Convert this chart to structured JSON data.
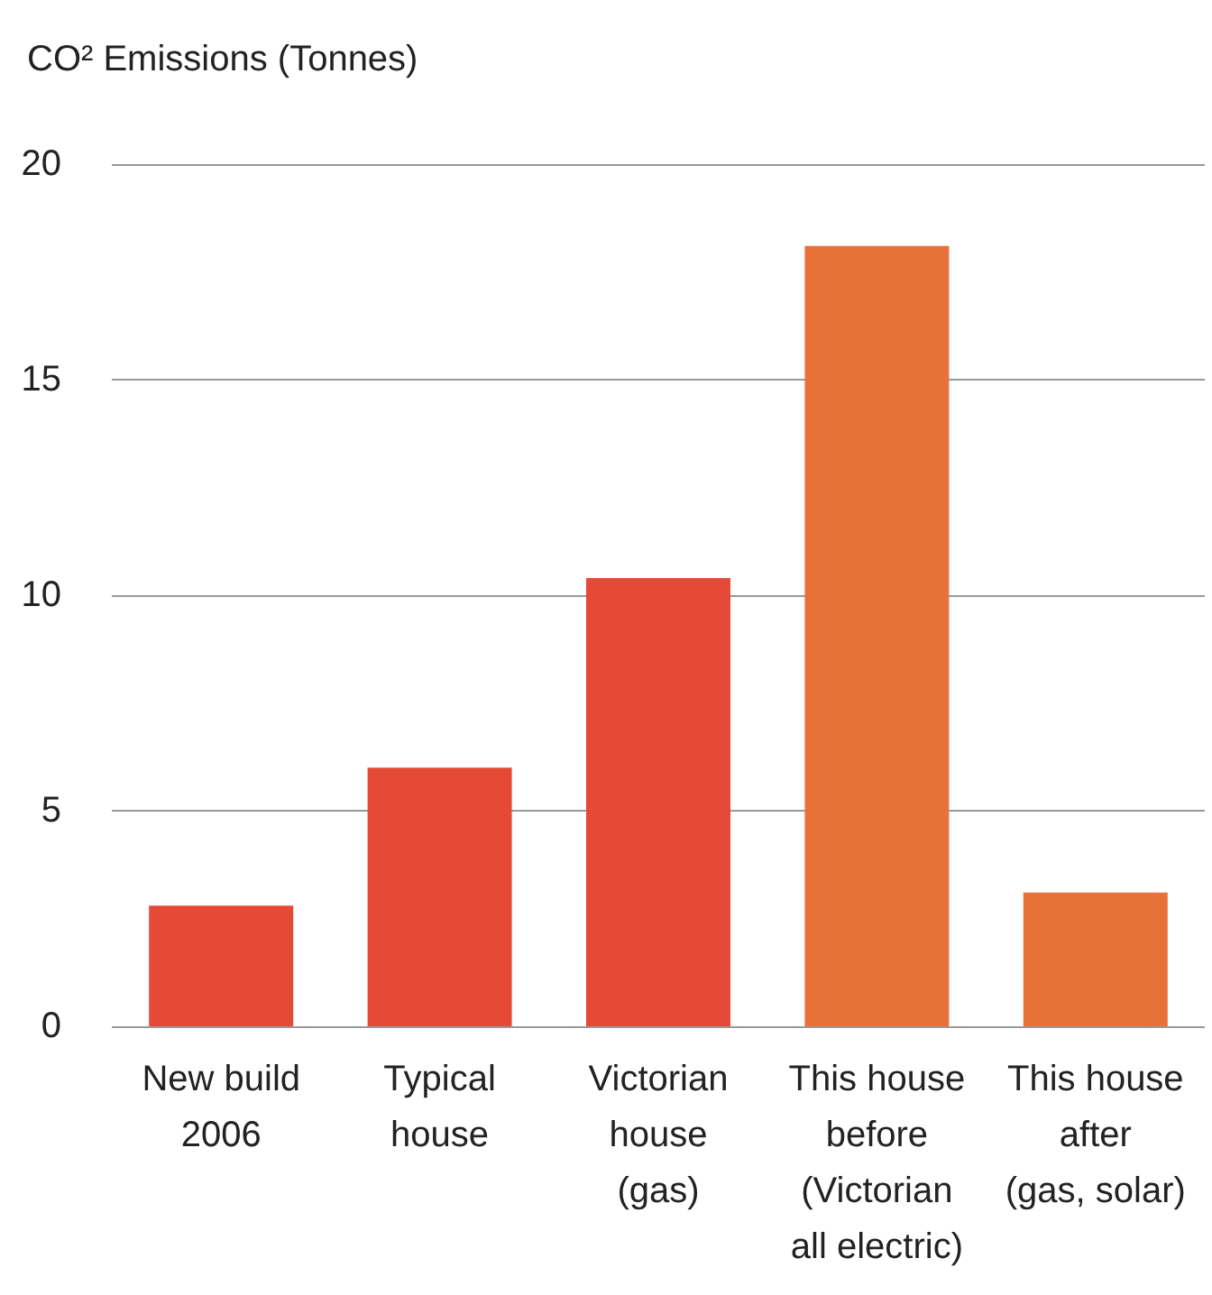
{
  "chart_data": {
    "type": "bar",
    "title": "CO² Emissions (Tonnes)",
    "categories": [
      "New build\n2006",
      "Typical\nhouse",
      "Victorian\nhouse\n(gas)",
      "This house\nbefore\n(Victorian\nall electric)",
      "This house\nafter\n(gas, solar)"
    ],
    "values": [
      2.8,
      6.0,
      10.4,
      18.1,
      3.1
    ],
    "colors": [
      "#e54a36",
      "#e54a36",
      "#e54a36",
      "#e8713a",
      "#e8713a"
    ],
    "ylim": [
      0,
      20
    ],
    "yticks": [
      0,
      5,
      10,
      15,
      20
    ],
    "grid": "y"
  }
}
